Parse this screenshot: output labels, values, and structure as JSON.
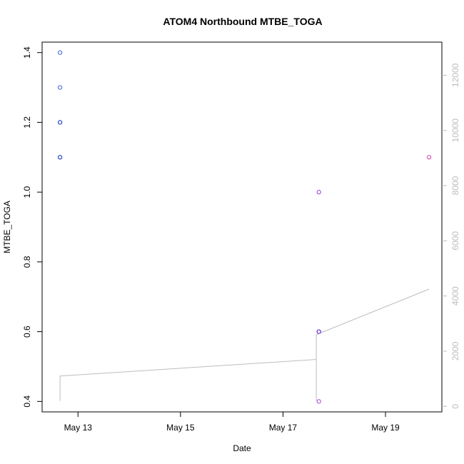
{
  "chart_data": {
    "type": "scatter",
    "title": "ATOM4 Northbound MTBE_TOGA",
    "xlabel": "Date",
    "ylabel": "MTBE_TOGA",
    "x_axis": {
      "ticks": [
        "May 13",
        "May 15",
        "May 17",
        "May 19"
      ],
      "tick_values": [
        13,
        15,
        17,
        19
      ],
      "range": [
        12.3,
        20.1
      ]
    },
    "y_axis_left": {
      "range": [
        0.37,
        1.43
      ],
      "ticks": [
        0.4,
        0.6,
        0.8,
        1.0,
        1.2,
        1.4
      ],
      "tick_labels": [
        "0.4",
        "0.6",
        "0.8",
        "1.0",
        "1.2",
        "1.4"
      ]
    },
    "y_axis_right": {
      "range": [
        -200,
        13200
      ],
      "ticks": [
        0,
        2000,
        4000,
        6000,
        8000,
        10000,
        12000
      ],
      "tick_labels": [
        "0",
        "2000",
        "4000",
        "6000",
        "8000",
        "10000",
        "12000"
      ],
      "color": "#bdbdbd"
    },
    "series": [
      {
        "points": [
          {
            "x": 12.65,
            "y": 1.4,
            "color": "#3a62d6"
          },
          {
            "x": 12.65,
            "y": 1.3,
            "color": "#3a62d6"
          },
          {
            "x": 12.65,
            "y": 1.2,
            "color": "#2448c0"
          },
          {
            "x": 12.65,
            "y": 1.2,
            "color": "#2448c0"
          },
          {
            "x": 12.65,
            "y": 1.1,
            "color": "#2448c0"
          },
          {
            "x": 12.65,
            "y": 1.1,
            "color": "#2448c0"
          },
          {
            "x": 17.7,
            "y": 1.0,
            "color": "#9b3ad0"
          },
          {
            "x": 17.7,
            "y": 0.6,
            "color": "#7a2ee0"
          },
          {
            "x": 17.7,
            "y": 0.6,
            "color": "#6f2ad8"
          },
          {
            "x": 17.7,
            "y": 0.4,
            "color": "#a040d8"
          },
          {
            "x": 19.85,
            "y": 1.1,
            "color": "#d83ab0"
          }
        ]
      },
      {
        "axis": "right",
        "type": "line",
        "color": "#bdbdbd",
        "points": [
          {
            "x": 12.65,
            "y": 200
          },
          {
            "x": 12.65,
            "y": 1100
          },
          {
            "x": 17.65,
            "y": 1700
          },
          {
            "x": 17.65,
            "y": 200
          },
          {
            "x": 17.65,
            "y": 2600
          },
          {
            "x": 19.85,
            "y": 4250
          }
        ]
      }
    ],
    "grid": false,
    "legend": "none"
  }
}
